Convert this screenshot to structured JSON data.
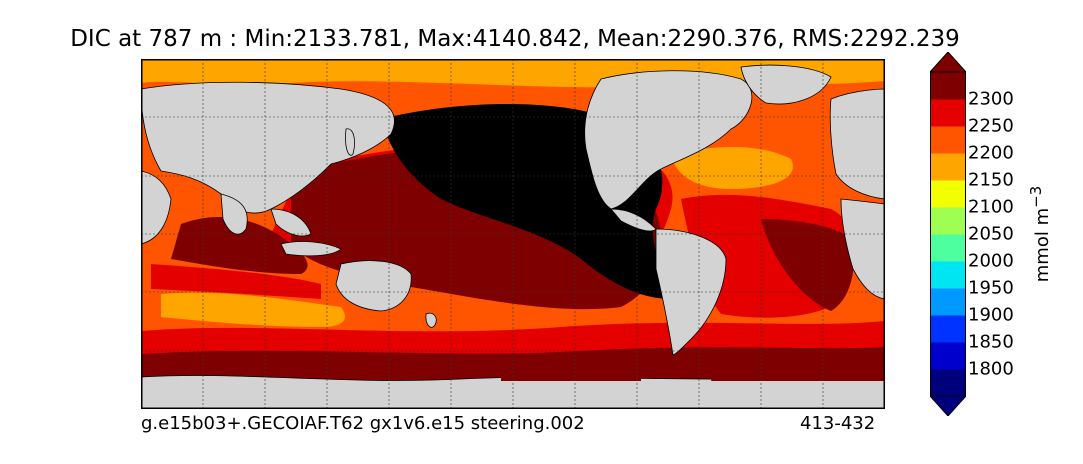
{
  "title": "DIC at 787 m : Min:2133.781, Max:4140.842, Mean:2290.376, RMS:2292.239",
  "footer": {
    "left": "g.e15b03+.GECOIAF.T62 gx1v6.e15 steering.002",
    "right": "413-432"
  },
  "colorbar": {
    "unit_prefix": "mmol m",
    "unit_exp": "−3",
    "colors": [
      "#00007f",
      "#0000cd",
      "#0033ff",
      "#0099ff",
      "#00e5f2",
      "#4dff9e",
      "#9eff52",
      "#f2ff00",
      "#ffa500",
      "#ff5500",
      "#e50000",
      "#7f0000"
    ],
    "ticks": [
      1800,
      1850,
      1900,
      1950,
      2000,
      2050,
      2100,
      2150,
      2200,
      2250,
      2300
    ]
  }
}
